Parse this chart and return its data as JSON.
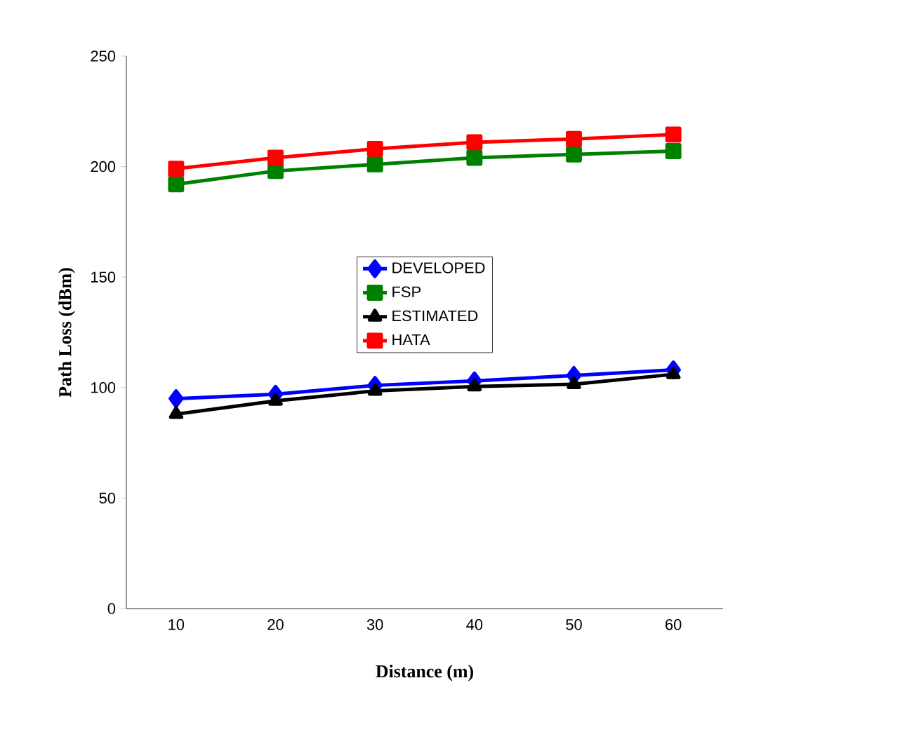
{
  "chart_data": {
    "type": "line",
    "xlabel": "Distance (m)",
    "ylabel": "Path Loss (dBm)",
    "categories": [
      "10",
      "20",
      "30",
      "40",
      "50",
      "60"
    ],
    "series": [
      {
        "name": "DEVELOPED",
        "color": "#0000ff",
        "marker": "diamond",
        "values": [
          95,
          97,
          101,
          103,
          105.5,
          108
        ]
      },
      {
        "name": "FSP",
        "color": "#008000",
        "marker": "square",
        "values": [
          192,
          198,
          201,
          204,
          205.5,
          207
        ]
      },
      {
        "name": "ESTIMATED",
        "color": "#000000",
        "marker": "triangle",
        "values": [
          88,
          94,
          98.5,
          100.5,
          101.5,
          106
        ]
      },
      {
        "name": "HATA",
        "color": "#ff0000",
        "marker": "square",
        "values": [
          199,
          204,
          208,
          211,
          212.5,
          214.5
        ]
      }
    ],
    "ylim": [
      0,
      250
    ],
    "yticks": [
      0,
      50,
      100,
      150,
      200,
      250
    ],
    "grid": false,
    "legend": "center"
  }
}
